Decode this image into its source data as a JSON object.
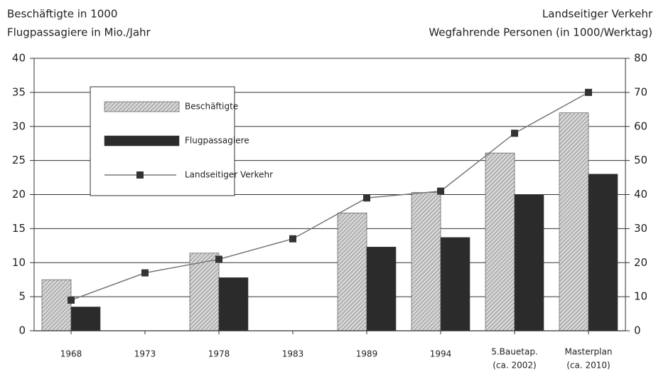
{
  "chart_data": {
    "type": "bar",
    "y_label": [
      "Beschäftigte in 1000",
      "Flugpassagiere in Mio./Jahr"
    ],
    "y2_label": [
      "Landseitiger Verkehr",
      "Wegfahrende Personen (in 1000/Werktag)"
    ],
    "categories": [
      "1968",
      "1973",
      "1978",
      "1983",
      "1989",
      "1994",
      "5.Bauetap. (ca. 2002)",
      "Masterplan (ca. 2010)"
    ],
    "series": [
      {
        "name": "Beschäftigte",
        "color": "#c4c4c4",
        "values": [
          7.5,
          null,
          11.4,
          null,
          17.3,
          20.3,
          26.1,
          32
        ]
      },
      {
        "name": "Flugpassagiere",
        "color": "#2b2b2b",
        "values": [
          3.5,
          null,
          7.8,
          null,
          12.3,
          13.7,
          20,
          23
        ]
      },
      {
        "name": "Landseitiger Verkehr",
        "color": "#777777",
        "type": "line",
        "axis": "y2",
        "values": [
          9,
          17,
          21,
          27,
          39,
          41,
          58,
          70
        ]
      }
    ],
    "ylim": [
      0,
      40
    ],
    "yticks": [
      0,
      5,
      10,
      15,
      20,
      25,
      30,
      35,
      40
    ],
    "y2lim": [
      0,
      80
    ],
    "y2ticks": [
      0,
      10,
      20,
      30,
      40,
      50,
      60,
      70,
      80
    ],
    "grid": true,
    "legend": "upper left"
  }
}
